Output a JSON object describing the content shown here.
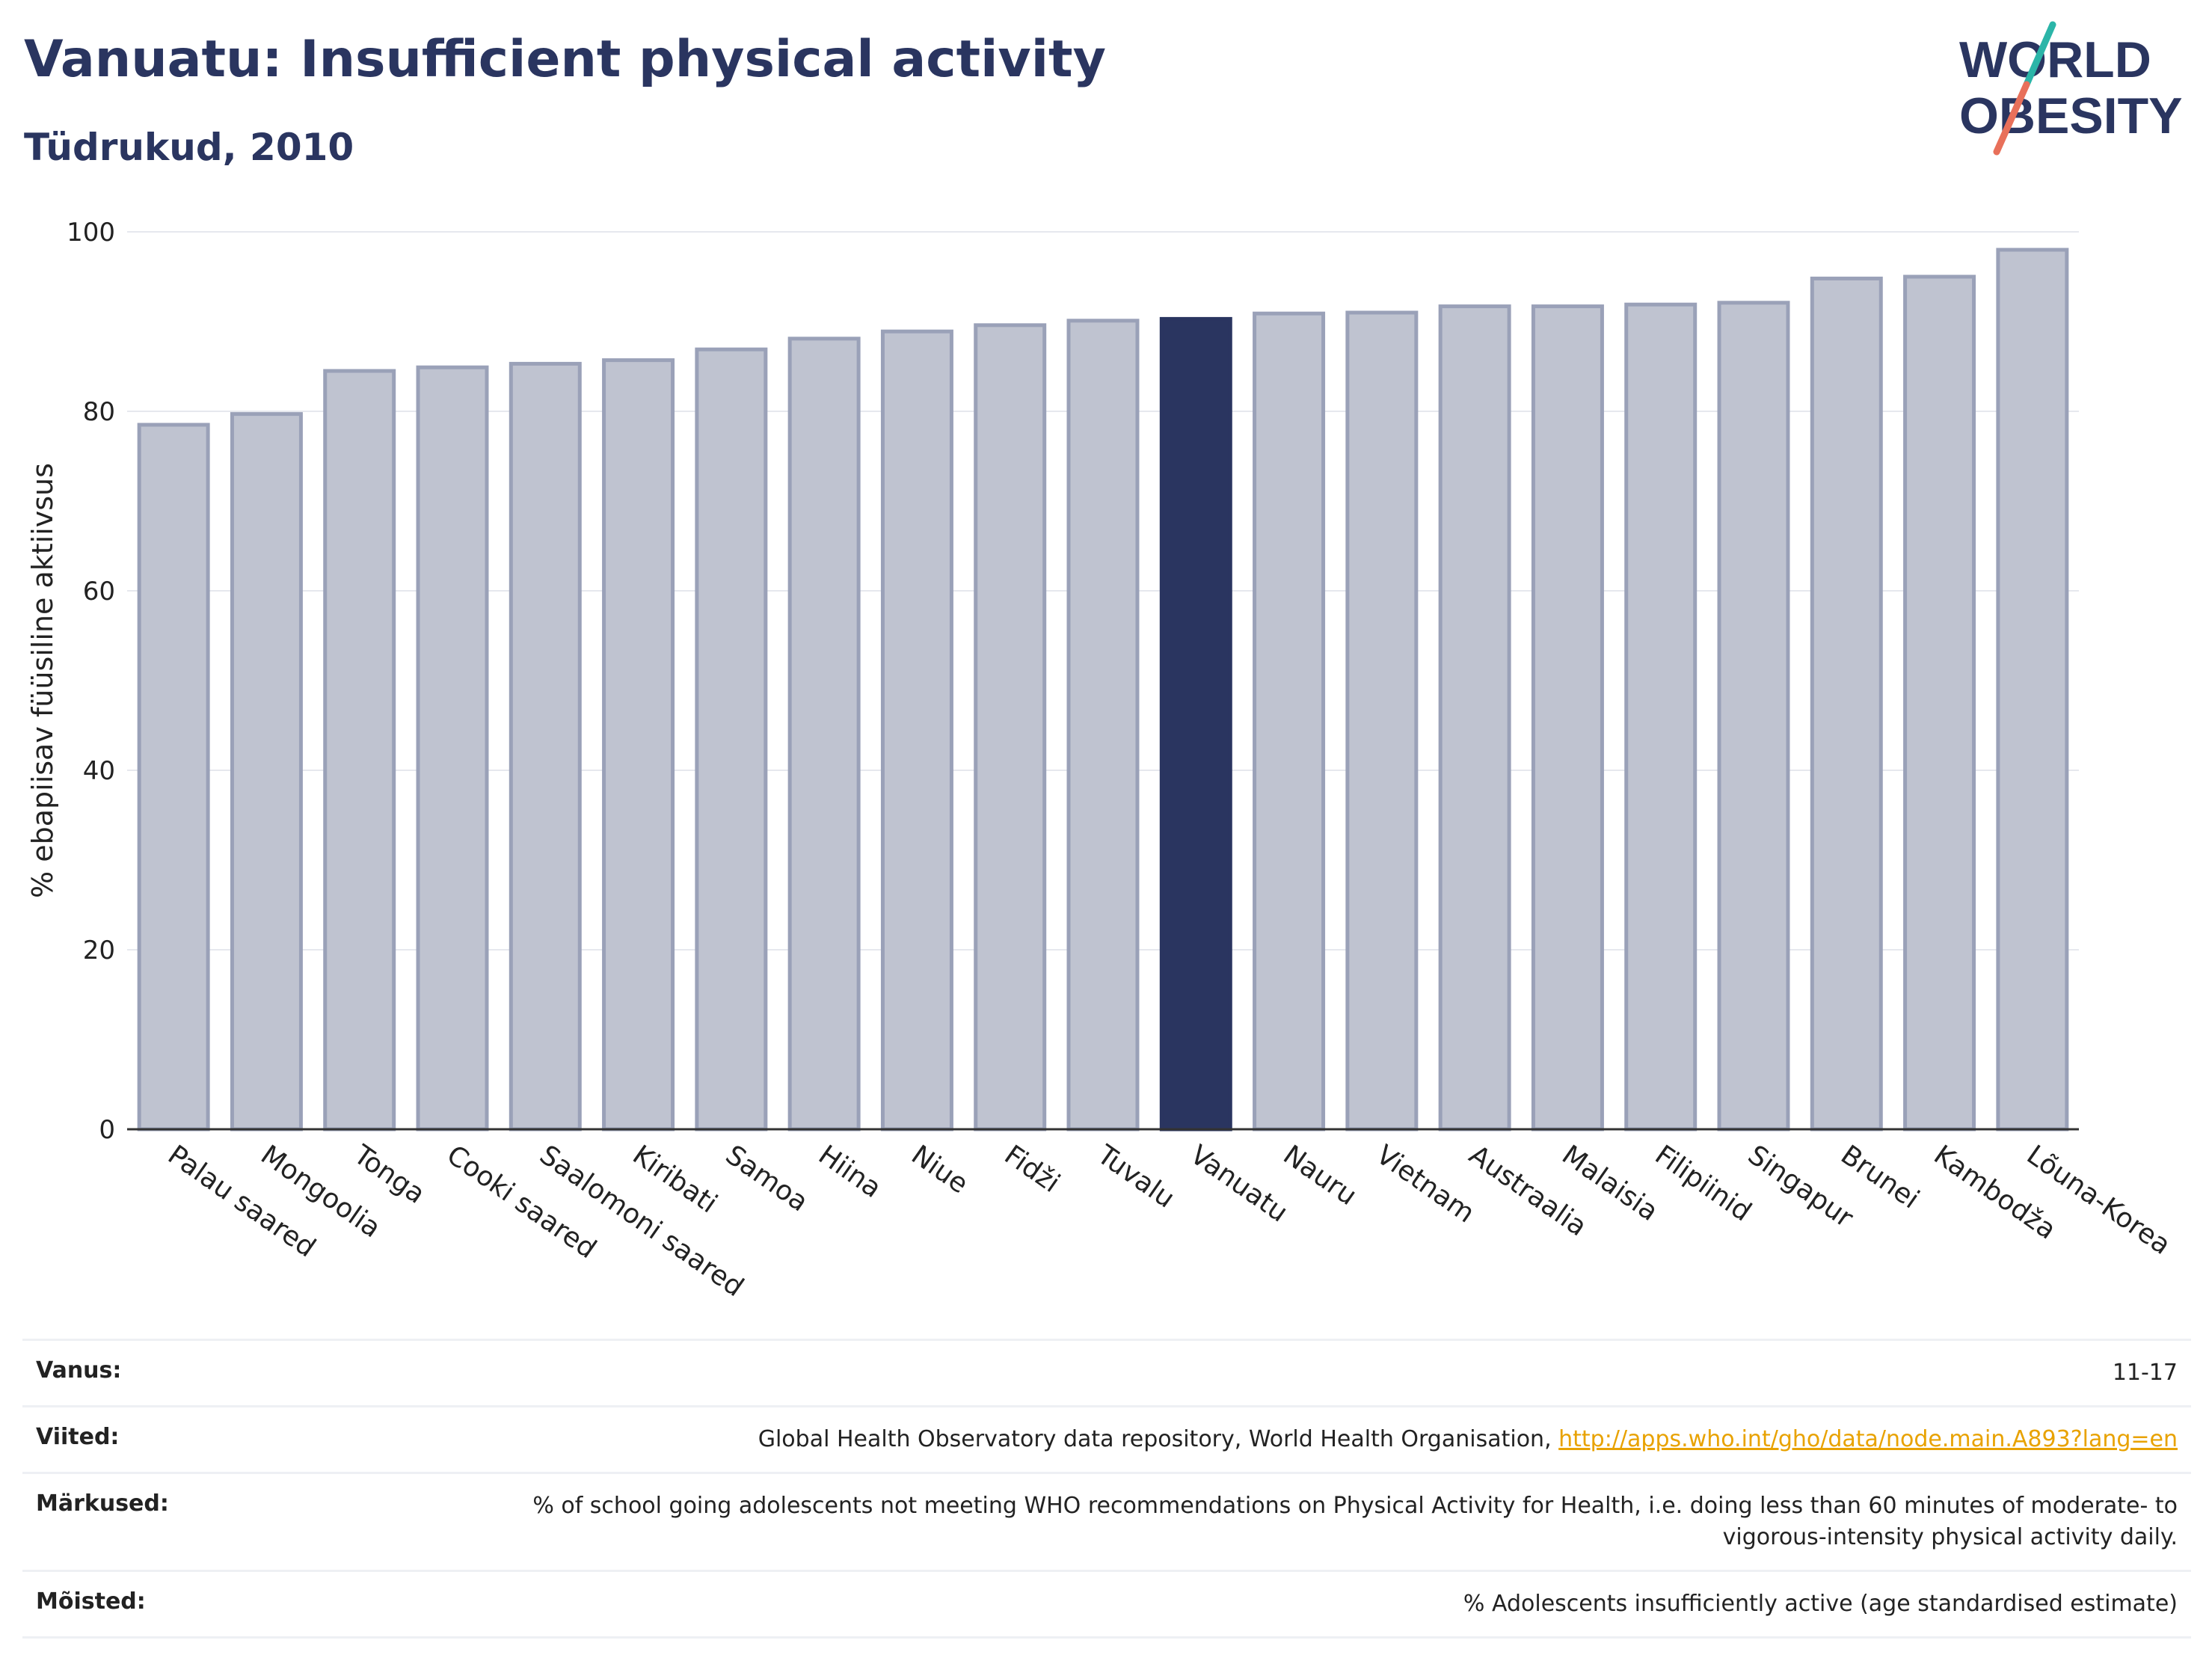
{
  "header": {
    "title": "Vanuatu: Insufficient physical activity",
    "subtitle": "Tüdrukud, 2010"
  },
  "logo": {
    "line1": "WORLD",
    "line2": "OBESITY",
    "colors": {
      "text": "#2a3560",
      "slash_top": "#2bb5a8",
      "slash_bottom": "#e8705a"
    }
  },
  "colors": {
    "bar_default": "#bfc3d0",
    "bar_border": "#9aa1b8",
    "bar_highlight": "#2a3560",
    "grid": "#e6e8ee",
    "axis": "#333333"
  },
  "chart_data": {
    "type": "bar",
    "title": "",
    "xlabel": "",
    "ylabel": "% ebapiisav füüsiline aktiivsus",
    "ylim": [
      0,
      100
    ],
    "yticks": [
      0,
      20,
      40,
      60,
      80,
      100
    ],
    "grid": true,
    "highlight": "Vanuatu",
    "categories": [
      "Palau saared",
      "Mongoolia",
      "Tonga",
      "Cooki saared",
      "Saalomoni saared",
      "Kiribati",
      "Samoa",
      "Hiina",
      "Niue",
      "Fidži",
      "Tuvalu",
      "Vanuatu",
      "Nauru",
      "Vietnam",
      "Austraalia",
      "Malaisia",
      "Filipiinid",
      "Singapur",
      "Brunei",
      "Kambodža",
      "Lõuna-Korea"
    ],
    "values": [
      78.5,
      79.7,
      84.5,
      84.9,
      85.3,
      85.7,
      86.9,
      88.1,
      88.9,
      89.6,
      90.1,
      90.3,
      90.9,
      91.0,
      91.7,
      91.7,
      91.9,
      92.1,
      94.8,
      95.0,
      98.0
    ]
  },
  "meta": {
    "age": {
      "label": "Vanus:",
      "value": "11-17"
    },
    "refs": {
      "label": "Viited:",
      "text": "Global Health Observatory data repository, World Health Organisation, ",
      "link": "http://apps.who.int/gho/data/node.main.A893?lang=en"
    },
    "notes": {
      "label": "Märkused:",
      "value": "% of school going adolescents not meeting WHO recommendations on Physical Activity for Health, i.e. doing less than 60 minutes of moderate- to vigorous-intensity physical activity daily."
    },
    "definitions": {
      "label": "Mõisted:",
      "value": "% Adolescents insufficiently active (age standardised estimate)"
    }
  }
}
